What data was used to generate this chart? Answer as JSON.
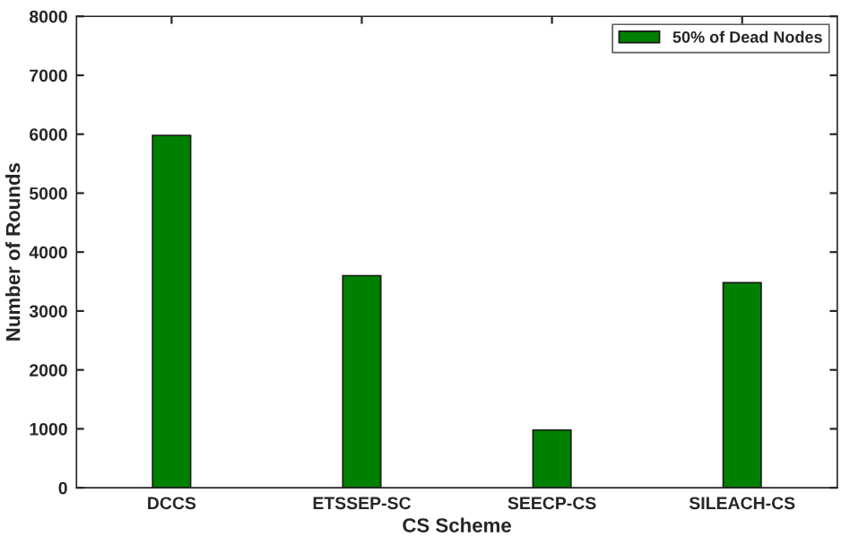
{
  "chart_data": {
    "type": "bar",
    "xlabel": "CS Scheme",
    "ylabel": "Number of Rounds",
    "categories": [
      "DCCS",
      "ETSSEP-SC",
      "SEECP-CS",
      "SILEACH-CS"
    ],
    "series": [
      {
        "name": "50% of Dead Nodes",
        "color": "#008000",
        "values": [
          5980,
          3600,
          980,
          3480
        ]
      }
    ],
    "ylim": [
      0,
      8000
    ],
    "yticks": [
      0,
      1000,
      2000,
      3000,
      4000,
      5000,
      6000,
      7000,
      8000
    ],
    "legend": "top right",
    "grid": false
  }
}
